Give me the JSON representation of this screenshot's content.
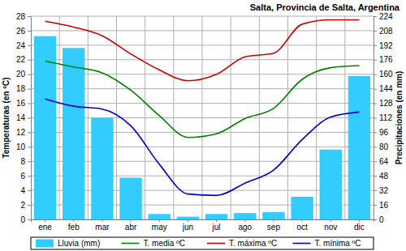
{
  "chart_data": {
    "type": "bar",
    "title": "Salta, Provincia de Salta, Argentina",
    "y_label": "Temperaturas (en ºC)",
    "y2_label": "Precipitaciones (en mm)",
    "categories": [
      "ene",
      "feb",
      "mar",
      "abr",
      "may",
      "jun",
      "jul",
      "ago",
      "sep",
      "oct",
      "nov",
      "dic"
    ],
    "series": [
      {
        "name": "Lluvia (mm)",
        "type": "bar",
        "axis": "y2",
        "color": "#33ccff",
        "values": [
          202,
          189,
          112,
          46,
          6,
          3,
          6,
          7,
          8,
          25,
          77,
          158
        ]
      },
      {
        "name": "T. media ºC",
        "type": "line",
        "color": "#008000",
        "values": [
          21.8,
          21.0,
          20.2,
          17.8,
          14.3,
          11.3,
          11.8,
          13.9,
          15.3,
          19.3,
          20.9,
          21.2
        ]
      },
      {
        "name": "T. máxima ºC",
        "type": "line",
        "color": "#cc0000",
        "values": [
          27.3,
          26.5,
          25.3,
          22.8,
          20.6,
          19.1,
          20.0,
          22.4,
          22.9,
          26.9,
          27.5,
          27.5
        ]
      },
      {
        "name": "T. mínima ºC",
        "type": "line",
        "color": "#0000cc",
        "values": [
          16.6,
          15.6,
          15.2,
          12.9,
          7.6,
          3.5,
          3.3,
          5.0,
          6.8,
          11.0,
          14.1,
          14.8
        ]
      }
    ],
    "ylim": [
      0,
      28
    ],
    "yticks": [
      0,
      2,
      4,
      6,
      8,
      10,
      12,
      14,
      16,
      18,
      20,
      22,
      24,
      26,
      28
    ],
    "y2lim": [
      0,
      224
    ],
    "y2ticks": [
      0,
      16,
      32,
      48,
      64,
      80,
      96,
      112,
      128,
      144,
      160,
      176,
      192,
      208,
      224
    ],
    "grid": true,
    "legend": "bottom"
  }
}
